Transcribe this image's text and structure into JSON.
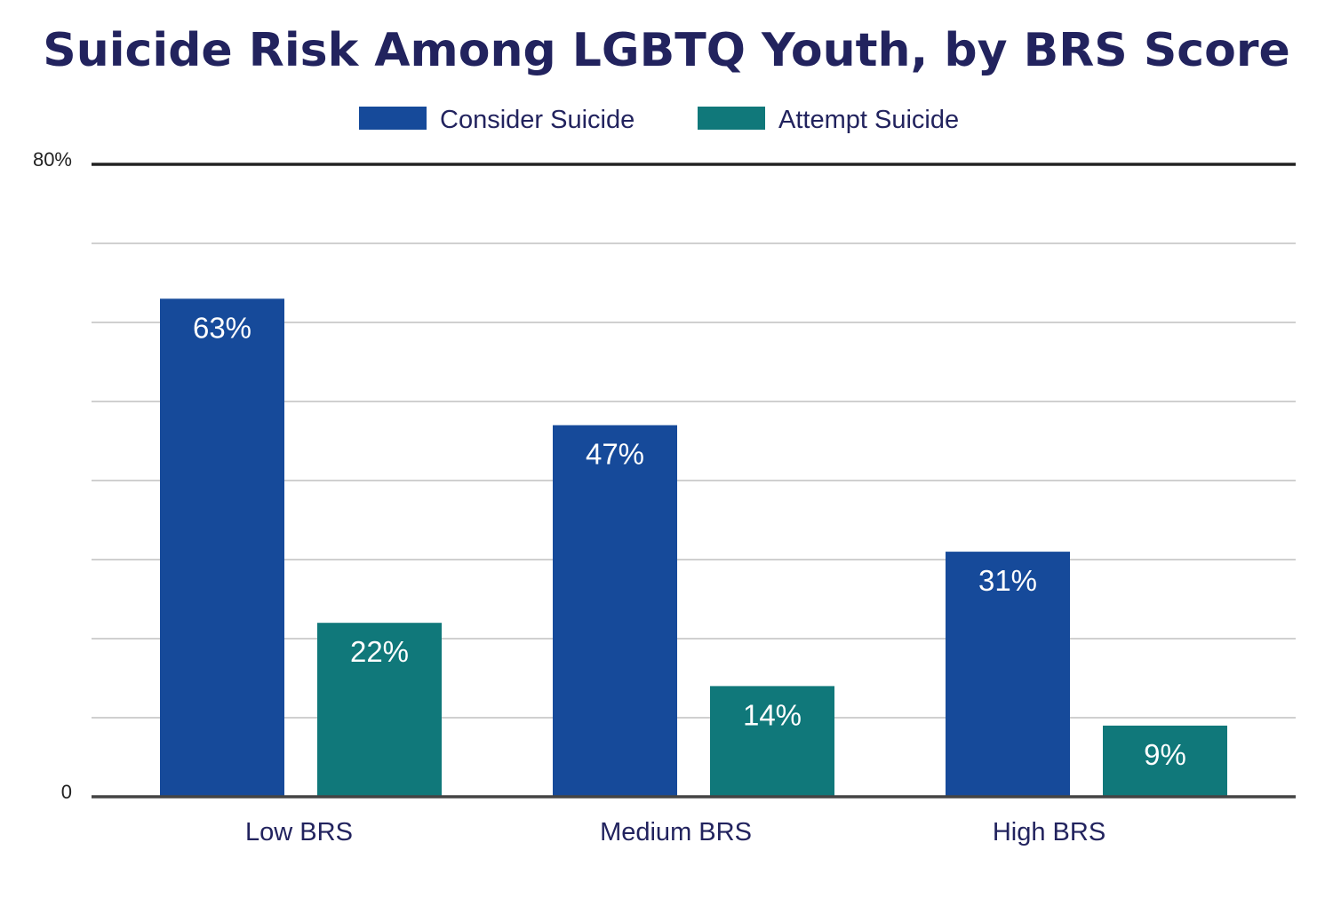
{
  "chart_data": {
    "type": "bar",
    "title": "Suicide Risk Among LGBTQ Youth, by BRS Score",
    "categories": [
      "Low BRS",
      "Medium BRS",
      "High BRS"
    ],
    "series": [
      {
        "name": "Consider Suicide",
        "values": [
          63,
          47,
          31
        ],
        "labels": [
          "63%",
          "47%",
          "31%"
        ],
        "color": "#164a9a"
      },
      {
        "name": "Attempt Suicide",
        "values": [
          22,
          14,
          9
        ],
        "labels": [
          "22%",
          "14%",
          "9%"
        ],
        "color": "#10787a"
      }
    ],
    "ylim": [
      0,
      80
    ],
    "ytick_labels": {
      "top": "80%",
      "bottom": "0"
    },
    "grid": true,
    "gridline_step": 10,
    "legend_position": "top-center",
    "xlabel": "",
    "ylabel": ""
  }
}
